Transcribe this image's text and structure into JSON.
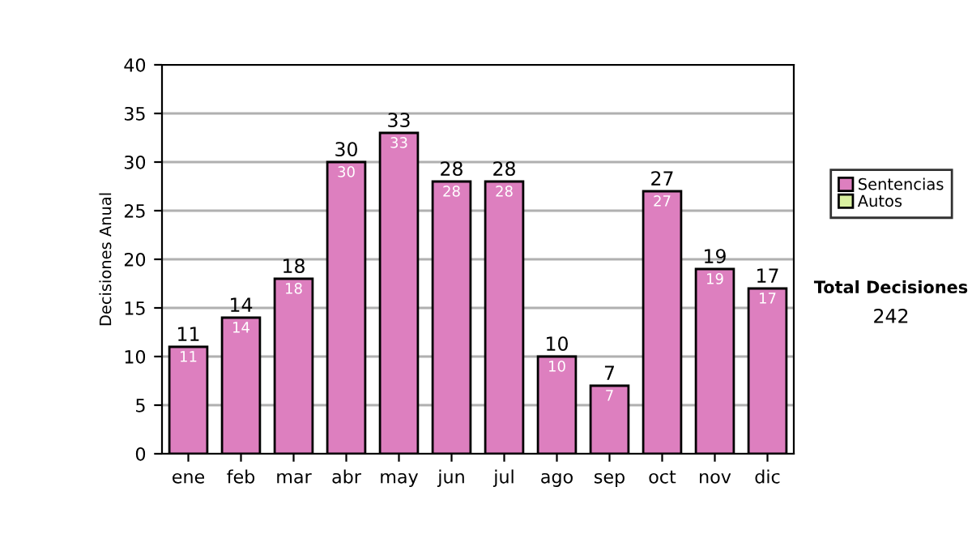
{
  "chart_data": {
    "type": "bar",
    "stacked": true,
    "ylabel": "Decisiones Anual",
    "categories": [
      "ene",
      "feb",
      "mar",
      "abr",
      "may",
      "jun",
      "jul",
      "ago",
      "sep",
      "oct",
      "nov",
      "dic"
    ],
    "series": [
      {
        "name": "Sentencias",
        "color": "#dd7fbf",
        "values": [
          11,
          14,
          18,
          30,
          33,
          28,
          28,
          10,
          7,
          27,
          19,
          17
        ],
        "value_labels": [
          "11",
          "14",
          "18",
          "30",
          "33",
          "28",
          "28",
          "10",
          "7",
          "27",
          "19",
          "17"
        ]
      },
      {
        "name": "Autos",
        "color": "#d9f0a0",
        "values": [
          null,
          null,
          null,
          null,
          null,
          null,
          null,
          null,
          null,
          null,
          null,
          null
        ]
      }
    ],
    "totals": [
      "11",
      "14",
      "18",
      "30",
      "33",
      "28",
      "28",
      "10",
      "7",
      "27",
      "19",
      "17"
    ],
    "ylim": [
      0,
      40
    ],
    "yticks": [
      0,
      5,
      10,
      15,
      20,
      25,
      30,
      35,
      40
    ],
    "grid": "y",
    "legend": "right",
    "annotations": [
      "Total Decisiones",
      "242"
    ]
  }
}
